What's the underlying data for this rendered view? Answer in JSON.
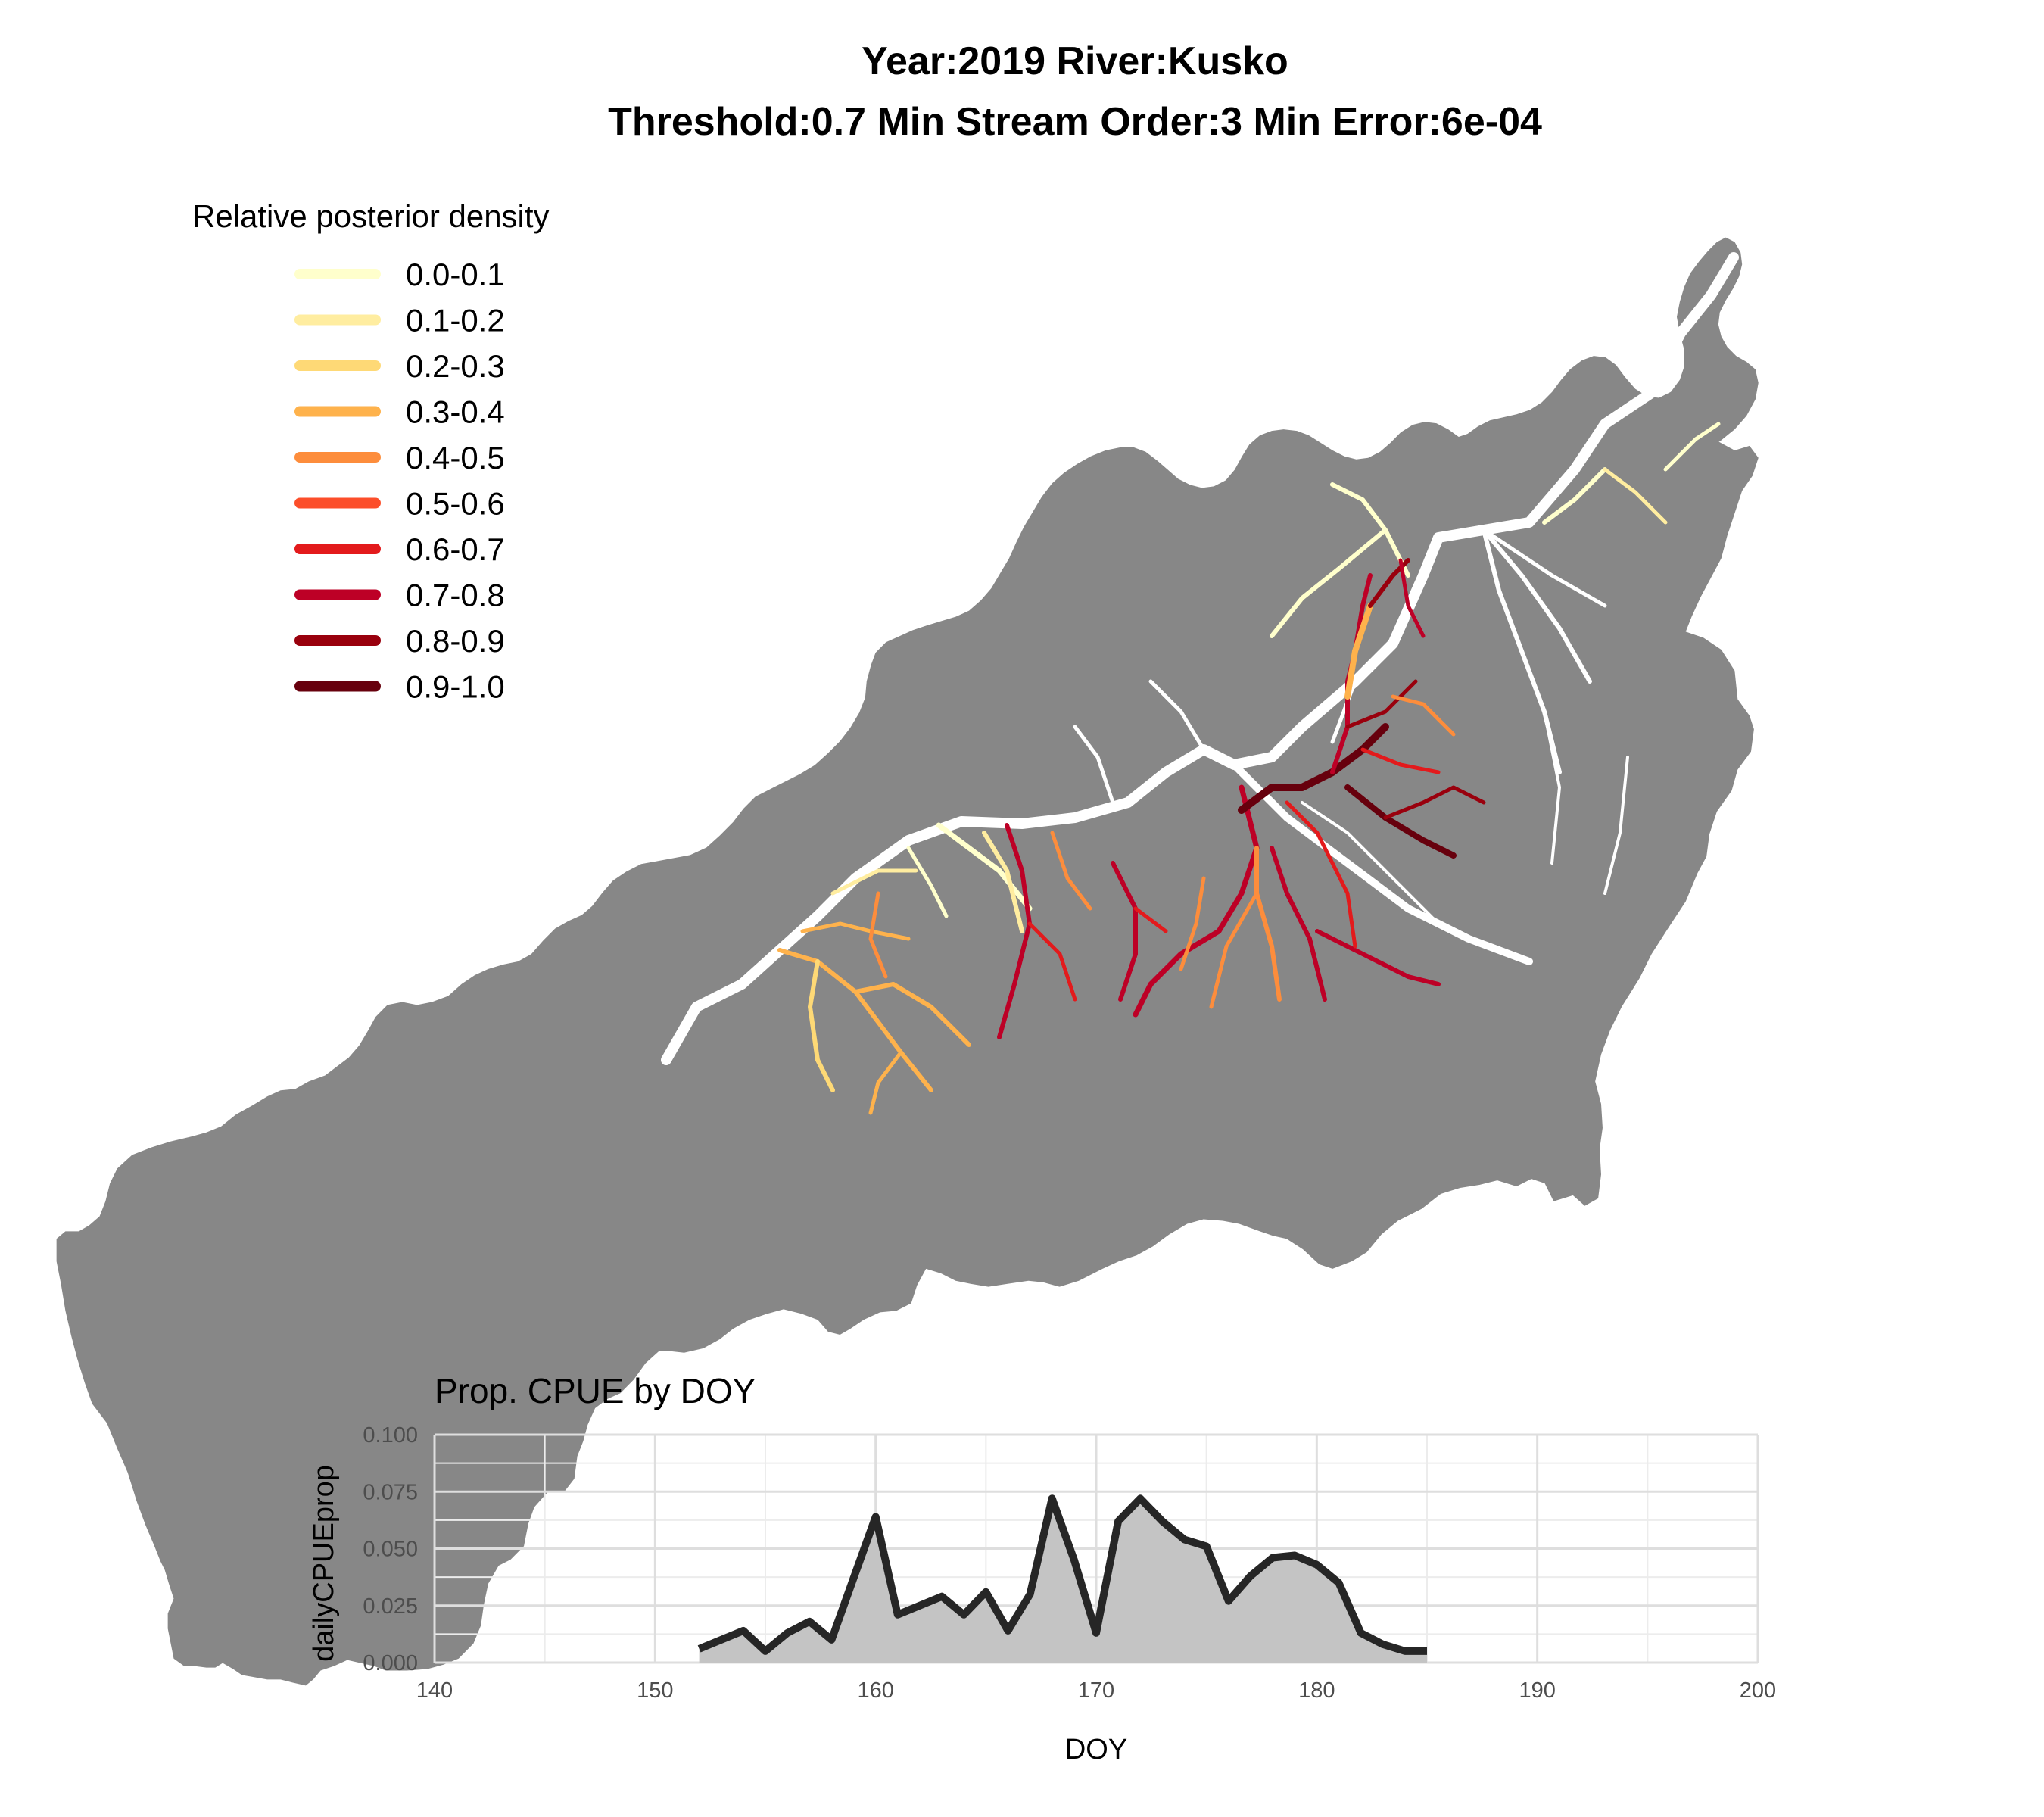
{
  "title": {
    "line1": "Year:2019 River:Kusko",
    "line2": "Threshold:0.7 Min Stream Order:3 Min Error:6e-04"
  },
  "legend": {
    "title": "Relative posterior density",
    "items": [
      {
        "label": "0.0-0.1",
        "color": "#ffffcc"
      },
      {
        "label": "0.1-0.2",
        "color": "#ffeda0"
      },
      {
        "label": "0.2-0.3",
        "color": "#fed976"
      },
      {
        "label": "0.3-0.4",
        "color": "#feb24c"
      },
      {
        "label": "0.4-0.5",
        "color": "#fd8d3c"
      },
      {
        "label": "0.5-0.6",
        "color": "#fc4e2a"
      },
      {
        "label": "0.6-0.7",
        "color": "#e31a1c"
      },
      {
        "label": "0.7-0.8",
        "color": "#bd0026"
      },
      {
        "label": "0.8-0.9",
        "color": "#99000d"
      },
      {
        "label": "0.9-1.0",
        "color": "#67000d"
      }
    ]
  },
  "map": {
    "basin_color": "#878787",
    "low_density_river_color": "#ffffff"
  },
  "chart_data": {
    "type": "area",
    "title": "Prop. CPUE by DOY",
    "xlabel": "DOY",
    "ylabel": "dailyCPUEprop",
    "xlim": [
      140,
      200
    ],
    "ylim": [
      0,
      0.1
    ],
    "x_ticks": [
      "140",
      "150",
      "160",
      "170",
      "180",
      "190",
      "200"
    ],
    "y_ticks": [
      "0.000",
      "0.025",
      "0.050",
      "0.075",
      "0.100"
    ],
    "grid": true,
    "line_color": "#262626",
    "fill_color": "#c4c4c4",
    "x": [
      152,
      153,
      154,
      155,
      156,
      157,
      158,
      159,
      160,
      161,
      162,
      163,
      164,
      165,
      166,
      167,
      168,
      169,
      170,
      171,
      172,
      173,
      174,
      175,
      176,
      177,
      178,
      179,
      180,
      181,
      182,
      183,
      184,
      185
    ],
    "y": [
      0.006,
      0.01,
      0.014,
      0.005,
      0.013,
      0.018,
      0.01,
      0.037,
      0.064,
      0.021,
      0.025,
      0.029,
      0.021,
      0.031,
      0.014,
      0.03,
      0.072,
      0.045,
      0.013,
      0.062,
      0.072,
      0.062,
      0.054,
      0.051,
      0.027,
      0.038,
      0.046,
      0.047,
      0.043,
      0.035,
      0.013,
      0.008,
      0.005,
      0.005
    ]
  }
}
